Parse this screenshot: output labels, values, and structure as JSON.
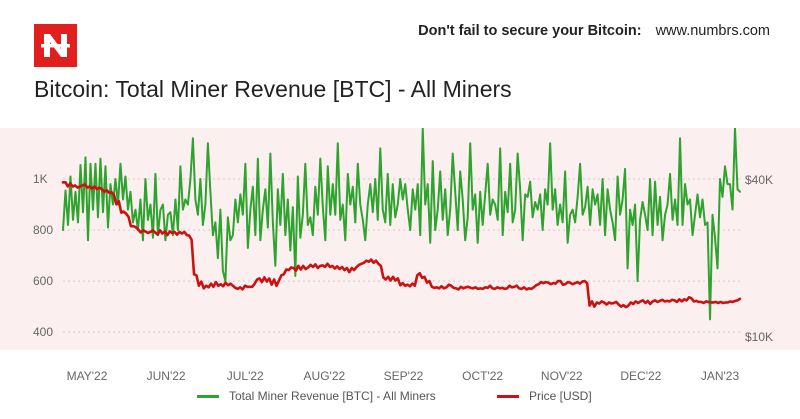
{
  "header": {
    "tagline": "Don't fail to secure your Bitcoin:",
    "site": "www.numbrs.com",
    "logo_icon": "numbrs-logo-icon"
  },
  "chart_data": {
    "type": "line",
    "title": "Bitcoin: Total Miner Revenue [BTC] - All Miners",
    "x_ticks": [
      "MAY'22",
      "JUN'22",
      "JUL'22",
      "AUG'22",
      "SEP'22",
      "OCT'22",
      "NOV'22",
      "DEC'22",
      "JAN'23"
    ],
    "y_left": {
      "ticks": [
        "400",
        "600",
        "800",
        "1K"
      ],
      "range": [
        330,
        1200
      ]
    },
    "y_right": {
      "ticks": [
        "$10K",
        "$40K"
      ],
      "range": [
        7500,
        50000
      ]
    },
    "background": "#fcefef",
    "grid": "horizontal dashed",
    "legend_position": "bottom",
    "series": [
      {
        "name": "Total Miner Revenue [BTC] - All Miners",
        "axis": "left",
        "color": "#2ea32e",
        "values": [
          800,
          955,
          820,
          1010,
          840,
          950,
          830,
          1055,
          870,
          1085,
          760,
          1060,
          880,
          1060,
          850,
          1080,
          870,
          1050,
          810,
          980,
          900,
          1000,
          900,
          1060,
          920,
          1010,
          880,
          950,
          830,
          880,
          800,
          920,
          760,
          1000,
          840,
          900,
          770,
          1020,
          780,
          880,
          900,
          760,
          860,
          870,
          780,
          920,
          800,
          1050,
          880,
          920,
          900,
          1000,
          1160,
          920,
          860,
          1000,
          820,
          900,
          1140,
          950,
          780,
          830,
          690,
          880,
          640,
          600,
          850,
          760,
          780,
          920,
          830,
          940,
          860,
          1060,
          730,
          880,
          970,
          780,
          1080,
          760,
          880,
          960,
          810,
          1100,
          830,
          660,
          960,
          820,
          1020,
          780,
          920,
          720,
          890,
          620,
          1010,
          770,
          860,
          1060,
          820,
          850,
          780,
          970,
          860,
          1080,
          890,
          760,
          1050,
          860,
          980,
          860,
          1140,
          840,
          900,
          760,
          1020,
          900,
          970,
          830,
          1060,
          900,
          840,
          760,
          900,
          980,
          870,
          1000,
          840,
          1120,
          880,
          830,
          1020,
          820,
          980,
          850,
          900,
          1000,
          920,
          980,
          880,
          800,
          960,
          880,
          980,
          780,
          1200,
          900,
          980,
          750,
          1070,
          800,
          880,
          1030,
          840,
          960,
          780,
          880,
          1100,
          950,
          800,
          1030,
          920,
          760,
          850,
          1140,
          880,
          940,
          750,
          950,
          820,
          940,
          1060,
          860,
          920,
          900,
          840,
          1120,
          780,
          950,
          870,
          1060,
          830,
          880,
          1100,
          960,
          760,
          940,
          930,
          990,
          850,
          910,
          880,
          940,
          800,
          960,
          900,
          1140,
          880,
          960,
          820,
          900,
          830,
          1030,
          750,
          860,
          880,
          830,
          930,
          1060,
          860,
          890,
          970,
          820,
          960,
          900,
          940,
          820,
          1000,
          780,
          960,
          880,
          830,
          760,
          1010,
          860,
          920,
          1040,
          650,
          880,
          820,
          900,
          600,
          840,
          910,
          860,
          800,
          1000,
          780,
          990,
          820,
          930,
          760,
          860,
          900,
          1020,
          840,
          920,
          820,
          1160,
          820,
          980,
          900,
          920,
          780,
          860,
          940,
          850,
          920,
          820,
          830,
          450,
          860,
          770,
          650,
          1000,
          930,
          1050,
          980,
          980,
          880,
          1200,
          960,
          950
        ]
      },
      {
        "name": "Price [USD]",
        "axis": "right",
        "color": "#cc1111",
        "values": [
          39600,
          39600,
          38800,
          39400,
          38800,
          39000,
          38600,
          38800,
          39000,
          39200,
          38600,
          38800,
          38400,
          38800,
          38300,
          38600,
          38300,
          37800,
          38100,
          37600,
          37700,
          37200,
          35400,
          36000,
          33800,
          34000,
          33600,
          33000,
          31200,
          31200,
          31000,
          30600,
          30000,
          30400,
          30200,
          29900,
          30100,
          30400,
          30000,
          29600,
          30400,
          29800,
          30200,
          29500,
          30200,
          29900,
          30100,
          29600,
          30100,
          29800,
          30100,
          29500,
          29400,
          28600,
          22000,
          21800,
          19800,
          20600,
          19300,
          19800,
          19500,
          20200,
          19600,
          20500,
          19800,
          20100,
          19700,
          20400,
          19900,
          20200,
          19800,
          19400,
          19200,
          19500,
          19100,
          19800,
          19600,
          19600,
          19600,
          20200,
          21000,
          21200,
          20500,
          21400,
          20600,
          21200,
          20000,
          21000,
          19800,
          20800,
          21800,
          22000,
          22900,
          22800,
          23300,
          23200,
          22700,
          23600,
          22900,
          23600,
          23000,
          23300,
          23800,
          23400,
          23900,
          23200,
          23600,
          23700,
          23400,
          24000,
          23400,
          23600,
          23100,
          23500,
          23000,
          23400,
          22800,
          23200,
          22400,
          23200,
          22800,
          23400,
          23800,
          24000,
          24200,
          24600,
          24400,
          24800,
          24200,
          24600,
          24000,
          23600,
          21400,
          21000,
          21500,
          20800,
          21500,
          20800,
          21200,
          19900,
          20300,
          19800,
          20000,
          19700,
          20200,
          19800,
          21800,
          22200,
          21300,
          21500,
          20400,
          20700,
          19600,
          19400,
          19500,
          19300,
          19700,
          19300,
          19500,
          20000,
          19800,
          19400,
          19300,
          19100,
          19600,
          19300,
          19500,
          19600,
          19400,
          19300,
          19500,
          19200,
          19300,
          19200,
          19500,
          19400,
          19800,
          19300,
          19200,
          19500,
          19300,
          19400,
          19200,
          19300,
          19800,
          19500,
          19600,
          19800,
          19300,
          19200,
          19500,
          19100,
          19300,
          19200,
          19500,
          19900,
          20100,
          20500,
          20300,
          20500,
          20400,
          20100,
          20300,
          20200,
          20700,
          20700,
          20000,
          20100,
          20500,
          20400,
          20100,
          20300,
          20500,
          20200,
          20600,
          20700,
          20300,
          16000,
          16800,
          15800,
          16600,
          16400,
          16800,
          16600,
          16200,
          16600,
          16400,
          16500,
          16700,
          16200,
          15800,
          16100,
          15700,
          16000,
          16600,
          16300,
          16800,
          16500,
          16800,
          17000,
          16500,
          16900,
          16300,
          16800,
          17000,
          16700,
          16900,
          17100,
          16800,
          16900,
          16800,
          17100,
          17000,
          16700,
          17200,
          16800,
          17200,
          17000,
          17600,
          17400,
          16800,
          16900,
          16700,
          16700,
          16500,
          16800,
          16700,
          16600,
          16600,
          16700,
          16500,
          16700,
          16500,
          16600,
          16600,
          16800,
          16700,
          16900,
          17000,
          17300
        ]
      }
    ]
  }
}
